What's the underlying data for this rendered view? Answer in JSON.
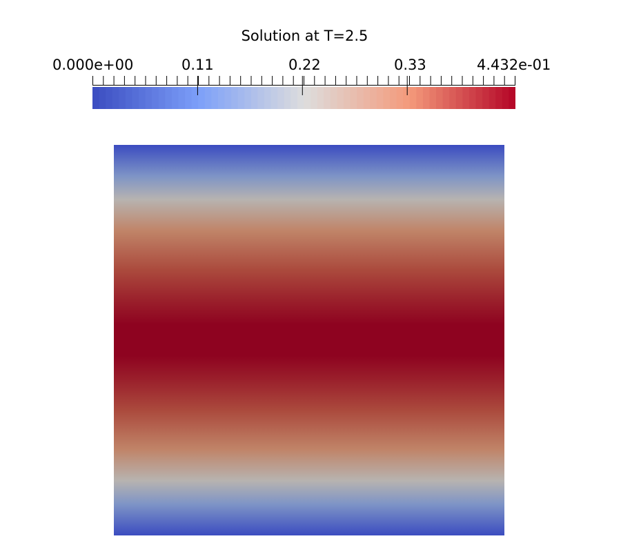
{
  "legend": {
    "title": "Solution at T=2.5",
    "min_label": "0.000e+00",
    "tick_labels": [
      "0.11",
      "0.22",
      "0.33"
    ],
    "max_label": "4.432e-01",
    "min_value": 0,
    "max_value": 0.4432,
    "colormap": "cool-to-warm",
    "colors": {
      "low": "#3b4cc0",
      "mid": "#dddddd",
      "high": "#b40426"
    }
  },
  "field": {
    "max_color": "#8e0320",
    "min_color": "#3b4cc0"
  }
}
